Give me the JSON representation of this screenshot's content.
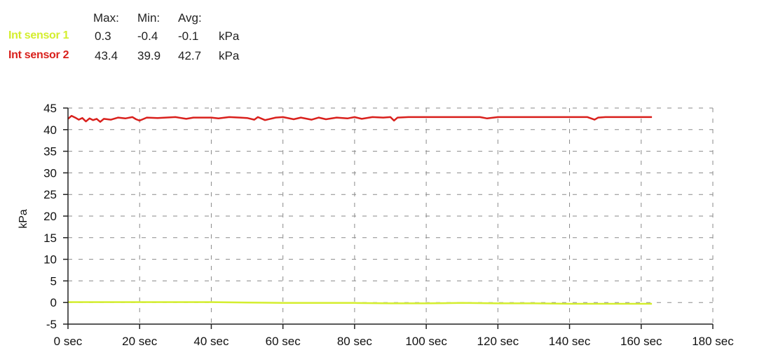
{
  "stats_table": {
    "headers": {
      "max": "Max:",
      "min": "Min:",
      "avg": "Avg:"
    },
    "rows": [
      {
        "name": "Int sensor 1",
        "max": "0.3",
        "min": "-0.4",
        "avg": "-0.1",
        "unit": "kPa",
        "color": "#d4ee2e"
      },
      {
        "name": "Int sensor 2",
        "max": "43.4",
        "min": "39.9",
        "avg": "42.7",
        "unit": "kPa",
        "color": "#d9201c"
      }
    ]
  },
  "chart_data": {
    "type": "line",
    "title": "",
    "xlabel": "",
    "ylabel": "kPa",
    "xlim": [
      0,
      180
    ],
    "ylim": [
      -5,
      45
    ],
    "x_ticks": [
      0,
      20,
      40,
      60,
      80,
      100,
      120,
      140,
      160,
      180
    ],
    "x_tick_labels": [
      "0 sec",
      "20 sec",
      "40 sec",
      "60 sec",
      "80 sec",
      "100 sec",
      "120 sec",
      "140 sec",
      "160 sec",
      "180 sec"
    ],
    "y_ticks": [
      -5,
      0,
      5,
      10,
      15,
      20,
      25,
      30,
      35,
      40,
      45
    ],
    "y_tick_labels": [
      "-5",
      "0",
      "5",
      "10",
      "15",
      "20",
      "25",
      "30",
      "35",
      "40",
      "45"
    ],
    "grid": true,
    "grid_style": "dashed",
    "series": [
      {
        "name": "Int sensor 1",
        "color": "#d4ee2e",
        "x": [
          0,
          10,
          20,
          30,
          40,
          50,
          60,
          70,
          80,
          90,
          100,
          110,
          120,
          130,
          140,
          150,
          163
        ],
        "y": [
          0.1,
          0.1,
          0.1,
          0.1,
          0.1,
          0.0,
          -0.1,
          -0.1,
          -0.1,
          -0.2,
          -0.2,
          -0.1,
          -0.2,
          -0.2,
          -0.3,
          -0.3,
          -0.3
        ]
      },
      {
        "name": "Int sensor 2",
        "color": "#d9201c",
        "x": [
          0,
          1,
          2,
          3,
          4,
          5,
          6,
          7,
          8,
          9,
          10,
          12,
          14,
          16,
          18,
          19,
          20,
          22,
          25,
          30,
          33,
          35,
          40,
          42,
          45,
          48,
          50,
          52,
          53,
          55,
          58,
          60,
          63,
          65,
          68,
          70,
          72,
          75,
          78,
          80,
          82,
          85,
          88,
          90,
          91,
          92,
          95,
          100,
          105,
          110,
          115,
          117,
          120,
          125,
          130,
          135,
          140,
          145,
          147,
          148,
          150,
          155,
          160,
          163
        ],
        "y": [
          42.5,
          43.2,
          42.8,
          42.3,
          42.7,
          41.9,
          42.6,
          42.2,
          42.5,
          41.8,
          42.5,
          42.3,
          42.8,
          42.6,
          42.9,
          42.4,
          42.1,
          42.8,
          42.7,
          42.9,
          42.5,
          42.8,
          42.8,
          42.6,
          42.9,
          42.8,
          42.7,
          42.3,
          42.9,
          42.2,
          42.8,
          42.9,
          42.4,
          42.8,
          42.3,
          42.8,
          42.4,
          42.8,
          42.6,
          42.9,
          42.5,
          42.9,
          42.8,
          42.9,
          42.1,
          42.8,
          42.9,
          42.9,
          42.9,
          42.9,
          42.9,
          42.6,
          42.9,
          42.9,
          42.9,
          42.9,
          42.9,
          42.9,
          42.3,
          42.8,
          42.9,
          42.9,
          42.9,
          42.9
        ]
      }
    ]
  }
}
